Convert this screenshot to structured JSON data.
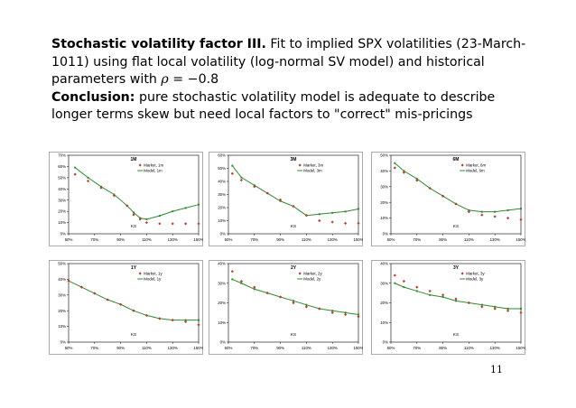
{
  "title": {
    "heading": "Stochastic volatility factor III.",
    "body": "Fit to implied SPX volatilities (23-March-1011) using flat local volatility (log-normal SV model) and historical parameters with",
    "rho_symbol": "ρ",
    "rho_value": "= −0.8"
  },
  "conclusion": {
    "label": "Conclusion:",
    "text": "pure stochastic volatility model is adequate to describe longer terms skew but need local factors to \"correct\" mis-pricings"
  },
  "page_number": "11",
  "colors": {
    "market": "#c0392b",
    "model": "#2e8b2e"
  },
  "chart_data": [
    {
      "type": "scatter",
      "title": "1M",
      "ks_label": "KS",
      "categories": [
        "50%",
        "70%",
        "90%",
        "110%",
        "130%",
        "150%"
      ],
      "xlim": [
        50,
        150
      ],
      "ylim": [
        0,
        70
      ],
      "yticks": [
        "0%",
        "10%",
        "20%",
        "30%",
        "40%",
        "50%",
        "60%",
        "70%"
      ],
      "series": [
        {
          "name": "Market, 1m",
          "x": [
            55,
            65,
            75,
            85,
            95,
            100,
            105,
            110,
            120,
            130,
            140,
            150
          ],
          "y": [
            53,
            47,
            41,
            34,
            25,
            17,
            13,
            10,
            9,
            9,
            9,
            9
          ]
        },
        {
          "name": "Model, 1m",
          "x": [
            55,
            65,
            75,
            85,
            95,
            100,
            105,
            110,
            120,
            130,
            140,
            150
          ],
          "y": [
            59,
            50,
            42,
            35,
            25,
            19,
            14,
            13,
            16,
            20,
            23,
            26
          ]
        }
      ]
    },
    {
      "type": "scatter",
      "title": "3M",
      "ks_label": "KS",
      "categories": [
        "50%",
        "70%",
        "90%",
        "110%",
        "130%",
        "150%"
      ],
      "xlim": [
        50,
        150
      ],
      "ylim": [
        0,
        60
      ],
      "yticks": [
        "0%",
        "10%",
        "20%",
        "30%",
        "40%",
        "50%",
        "60%"
      ],
      "series": [
        {
          "name": "Market, 3m",
          "x": [
            53,
            60,
            70,
            80,
            90,
            100,
            110,
            120,
            130,
            140,
            150
          ],
          "y": [
            46,
            41,
            36,
            31,
            26,
            21,
            14,
            10,
            9,
            8,
            8
          ]
        },
        {
          "name": "Model, 3m",
          "x": [
            53,
            60,
            70,
            80,
            90,
            100,
            110,
            120,
            130,
            140,
            150
          ],
          "y": [
            52,
            43,
            37,
            31,
            25,
            21,
            14,
            15,
            16,
            17,
            19
          ]
        }
      ]
    },
    {
      "type": "scatter",
      "title": "6M",
      "ks_label": "KS",
      "categories": [
        "50%",
        "70%",
        "90%",
        "110%",
        "130%",
        "150%"
      ],
      "xlim": [
        50,
        150
      ],
      "ylim": [
        0,
        50
      ],
      "yticks": [
        "0%",
        "10%",
        "20%",
        "30%",
        "40%",
        "50%"
      ],
      "series": [
        {
          "name": "Market, 6m",
          "x": [
            53,
            60,
            70,
            80,
            90,
            100,
            110,
            120,
            130,
            140,
            150
          ],
          "y": [
            42,
            39,
            34,
            29,
            24,
            19,
            14,
            12,
            11,
            10,
            9
          ]
        },
        {
          "name": "Model, 6m",
          "x": [
            53,
            60,
            70,
            80,
            90,
            100,
            110,
            120,
            130,
            140,
            150
          ],
          "y": [
            45,
            40,
            35,
            29,
            24,
            19,
            15,
            14,
            14,
            15,
            16
          ]
        }
      ]
    },
    {
      "type": "scatter",
      "title": "1Y",
      "ks_label": "KS",
      "categories": [
        "50%",
        "70%",
        "90%",
        "110%",
        "130%",
        "150%"
      ],
      "xlim": [
        50,
        150
      ],
      "ylim": [
        0,
        50
      ],
      "yticks": [
        "0%",
        "10%",
        "20%",
        "30%",
        "40%",
        "50%"
      ],
      "series": [
        {
          "name": "Market, 1y",
          "x": [
            50,
            60,
            70,
            80,
            90,
            100,
            110,
            120,
            130,
            140,
            150
          ],
          "y": [
            39,
            35,
            31,
            27,
            24,
            20,
            17,
            15,
            14,
            13,
            11
          ]
        },
        {
          "name": "Model, 1y",
          "x": [
            50,
            60,
            70,
            80,
            90,
            100,
            110,
            120,
            130,
            140,
            150
          ],
          "y": [
            39,
            35,
            31,
            27,
            24,
            20,
            17,
            15,
            14,
            14,
            14
          ]
        }
      ]
    },
    {
      "type": "scatter",
      "title": "2Y",
      "ks_label": "KS",
      "categories": [
        "50%",
        "70%",
        "90%",
        "110%",
        "130%",
        "150%"
      ],
      "xlim": [
        50,
        150
      ],
      "ylim": [
        0,
        40
      ],
      "yticks": [
        "0%",
        "10%",
        "20%",
        "30%",
        "40%"
      ],
      "series": [
        {
          "name": "Market, 2y",
          "x": [
            53,
            60,
            70,
            80,
            90,
            100,
            110,
            120,
            130,
            140,
            150
          ],
          "y": [
            36,
            31,
            28,
            25,
            23,
            20,
            18,
            17,
            15,
            14,
            13
          ]
        },
        {
          "name": "Model, 2y",
          "x": [
            53,
            60,
            70,
            80,
            90,
            100,
            110,
            120,
            130,
            140,
            150
          ],
          "y": [
            32,
            30,
            27,
            25,
            23,
            21,
            19,
            17,
            16,
            15,
            14
          ]
        }
      ]
    },
    {
      "type": "scatter",
      "title": "3Y",
      "ks_label": "KS",
      "categories": [
        "50%",
        "70%",
        "90%",
        "110%",
        "130%",
        "150%"
      ],
      "xlim": [
        50,
        150
      ],
      "ylim": [
        0,
        40
      ],
      "yticks": [
        "0%",
        "10%",
        "20%",
        "30%",
        "40%"
      ],
      "series": [
        {
          "name": "Market, 3y",
          "x": [
            53,
            60,
            70,
            80,
            90,
            100,
            110,
            120,
            130,
            140,
            150
          ],
          "y": [
            34,
            31,
            28,
            26,
            24,
            22,
            20,
            18,
            17,
            16,
            15
          ]
        },
        {
          "name": "Model, 3y",
          "x": [
            53,
            60,
            70,
            80,
            90,
            100,
            110,
            120,
            130,
            140,
            150
          ],
          "y": [
            30,
            28,
            26,
            24,
            23,
            21,
            20,
            19,
            18,
            17,
            17
          ]
        }
      ]
    }
  ]
}
